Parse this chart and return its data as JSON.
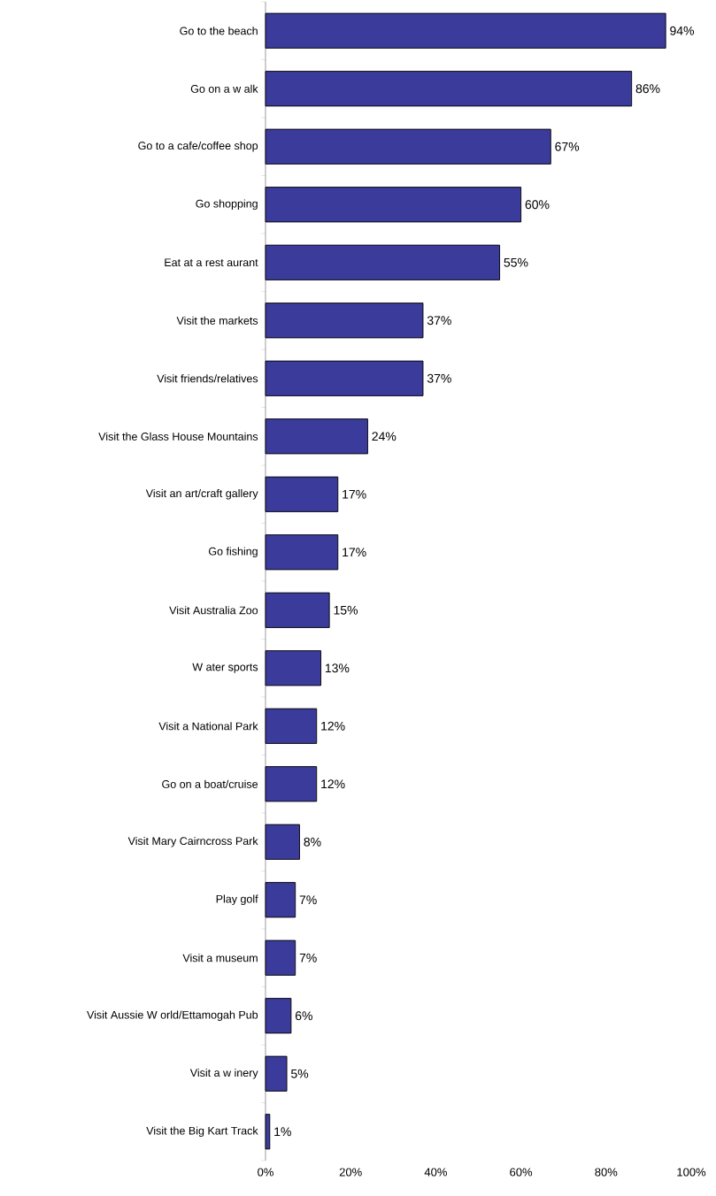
{
  "chart_data": {
    "type": "bar",
    "orientation": "horizontal",
    "color": "#3b3b9b",
    "categories": [
      "Go to the beach",
      "Go on a w alk",
      "Go to a cafe/coffee shop",
      "Go shopping",
      "Eat at a rest aurant",
      "Visit the markets",
      "Visit friends/relatives",
      "Visit the Glass House Mountains",
      "Visit an art/craft gallery",
      "Go fishing",
      "Visit Australia Zoo",
      "W ater sports",
      "Visit a National Park",
      "Go on a boat/cruise",
      "Visit Mary Cairncross Park",
      "Play golf",
      "Visit a museum",
      "Visit Aussie W orld/Ettamogah Pub",
      "Visit a w inery",
      "Visit the Big Kart Track"
    ],
    "values": [
      94,
      86,
      67,
      60,
      55,
      37,
      37,
      24,
      17,
      17,
      15,
      13,
      12,
      12,
      8,
      7,
      7,
      6,
      5,
      1
    ],
    "value_labels": [
      "94%",
      "86%",
      "67%",
      "60%",
      "55%",
      "37%",
      "37%",
      "24%",
      "17%",
      "17%",
      "15%",
      "13%",
      "12%",
      "12%",
      "8%",
      "7%",
      "7%",
      "6%",
      "5%",
      "1%"
    ],
    "xlim": [
      0,
      100
    ],
    "xticks": [
      {
        "value": 0,
        "label": "0%"
      },
      {
        "value": 20,
        "label": "20%"
      },
      {
        "value": 40,
        "label": "40%"
      },
      {
        "value": 60,
        "label": "60%"
      },
      {
        "value": 80,
        "label": "80%"
      },
      {
        "value": 100,
        "label": "100%"
      }
    ],
    "data_labels": false
  }
}
